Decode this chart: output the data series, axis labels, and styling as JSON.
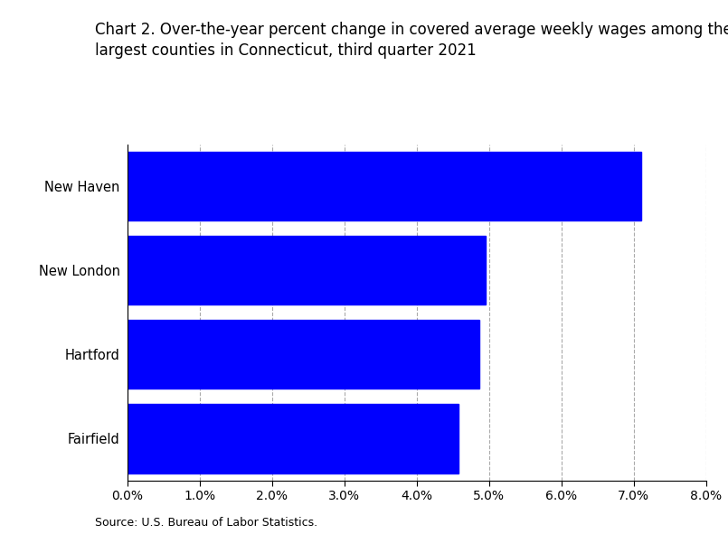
{
  "title_line1": "Chart 2. Over-the-year percent change in covered average weekly wages among the",
  "title_line2": "largest counties in Connecticut, third quarter 2021",
  "categories": [
    "New Haven",
    "New London",
    "Hartford",
    "Fairfield"
  ],
  "values": [
    0.071,
    0.0495,
    0.0487,
    0.0458
  ],
  "bar_color": "#0000FF",
  "xlim": [
    0.0,
    0.08
  ],
  "xticks": [
    0.0,
    0.01,
    0.02,
    0.03,
    0.04,
    0.05,
    0.06,
    0.07,
    0.08
  ],
  "source": "Source: U.S. Bureau of Labor Statistics.",
  "background_color": "#ffffff",
  "bar_height": 0.82,
  "title_fontsize": 12,
  "tick_fontsize": 10,
  "label_fontsize": 10.5,
  "source_fontsize": 9
}
